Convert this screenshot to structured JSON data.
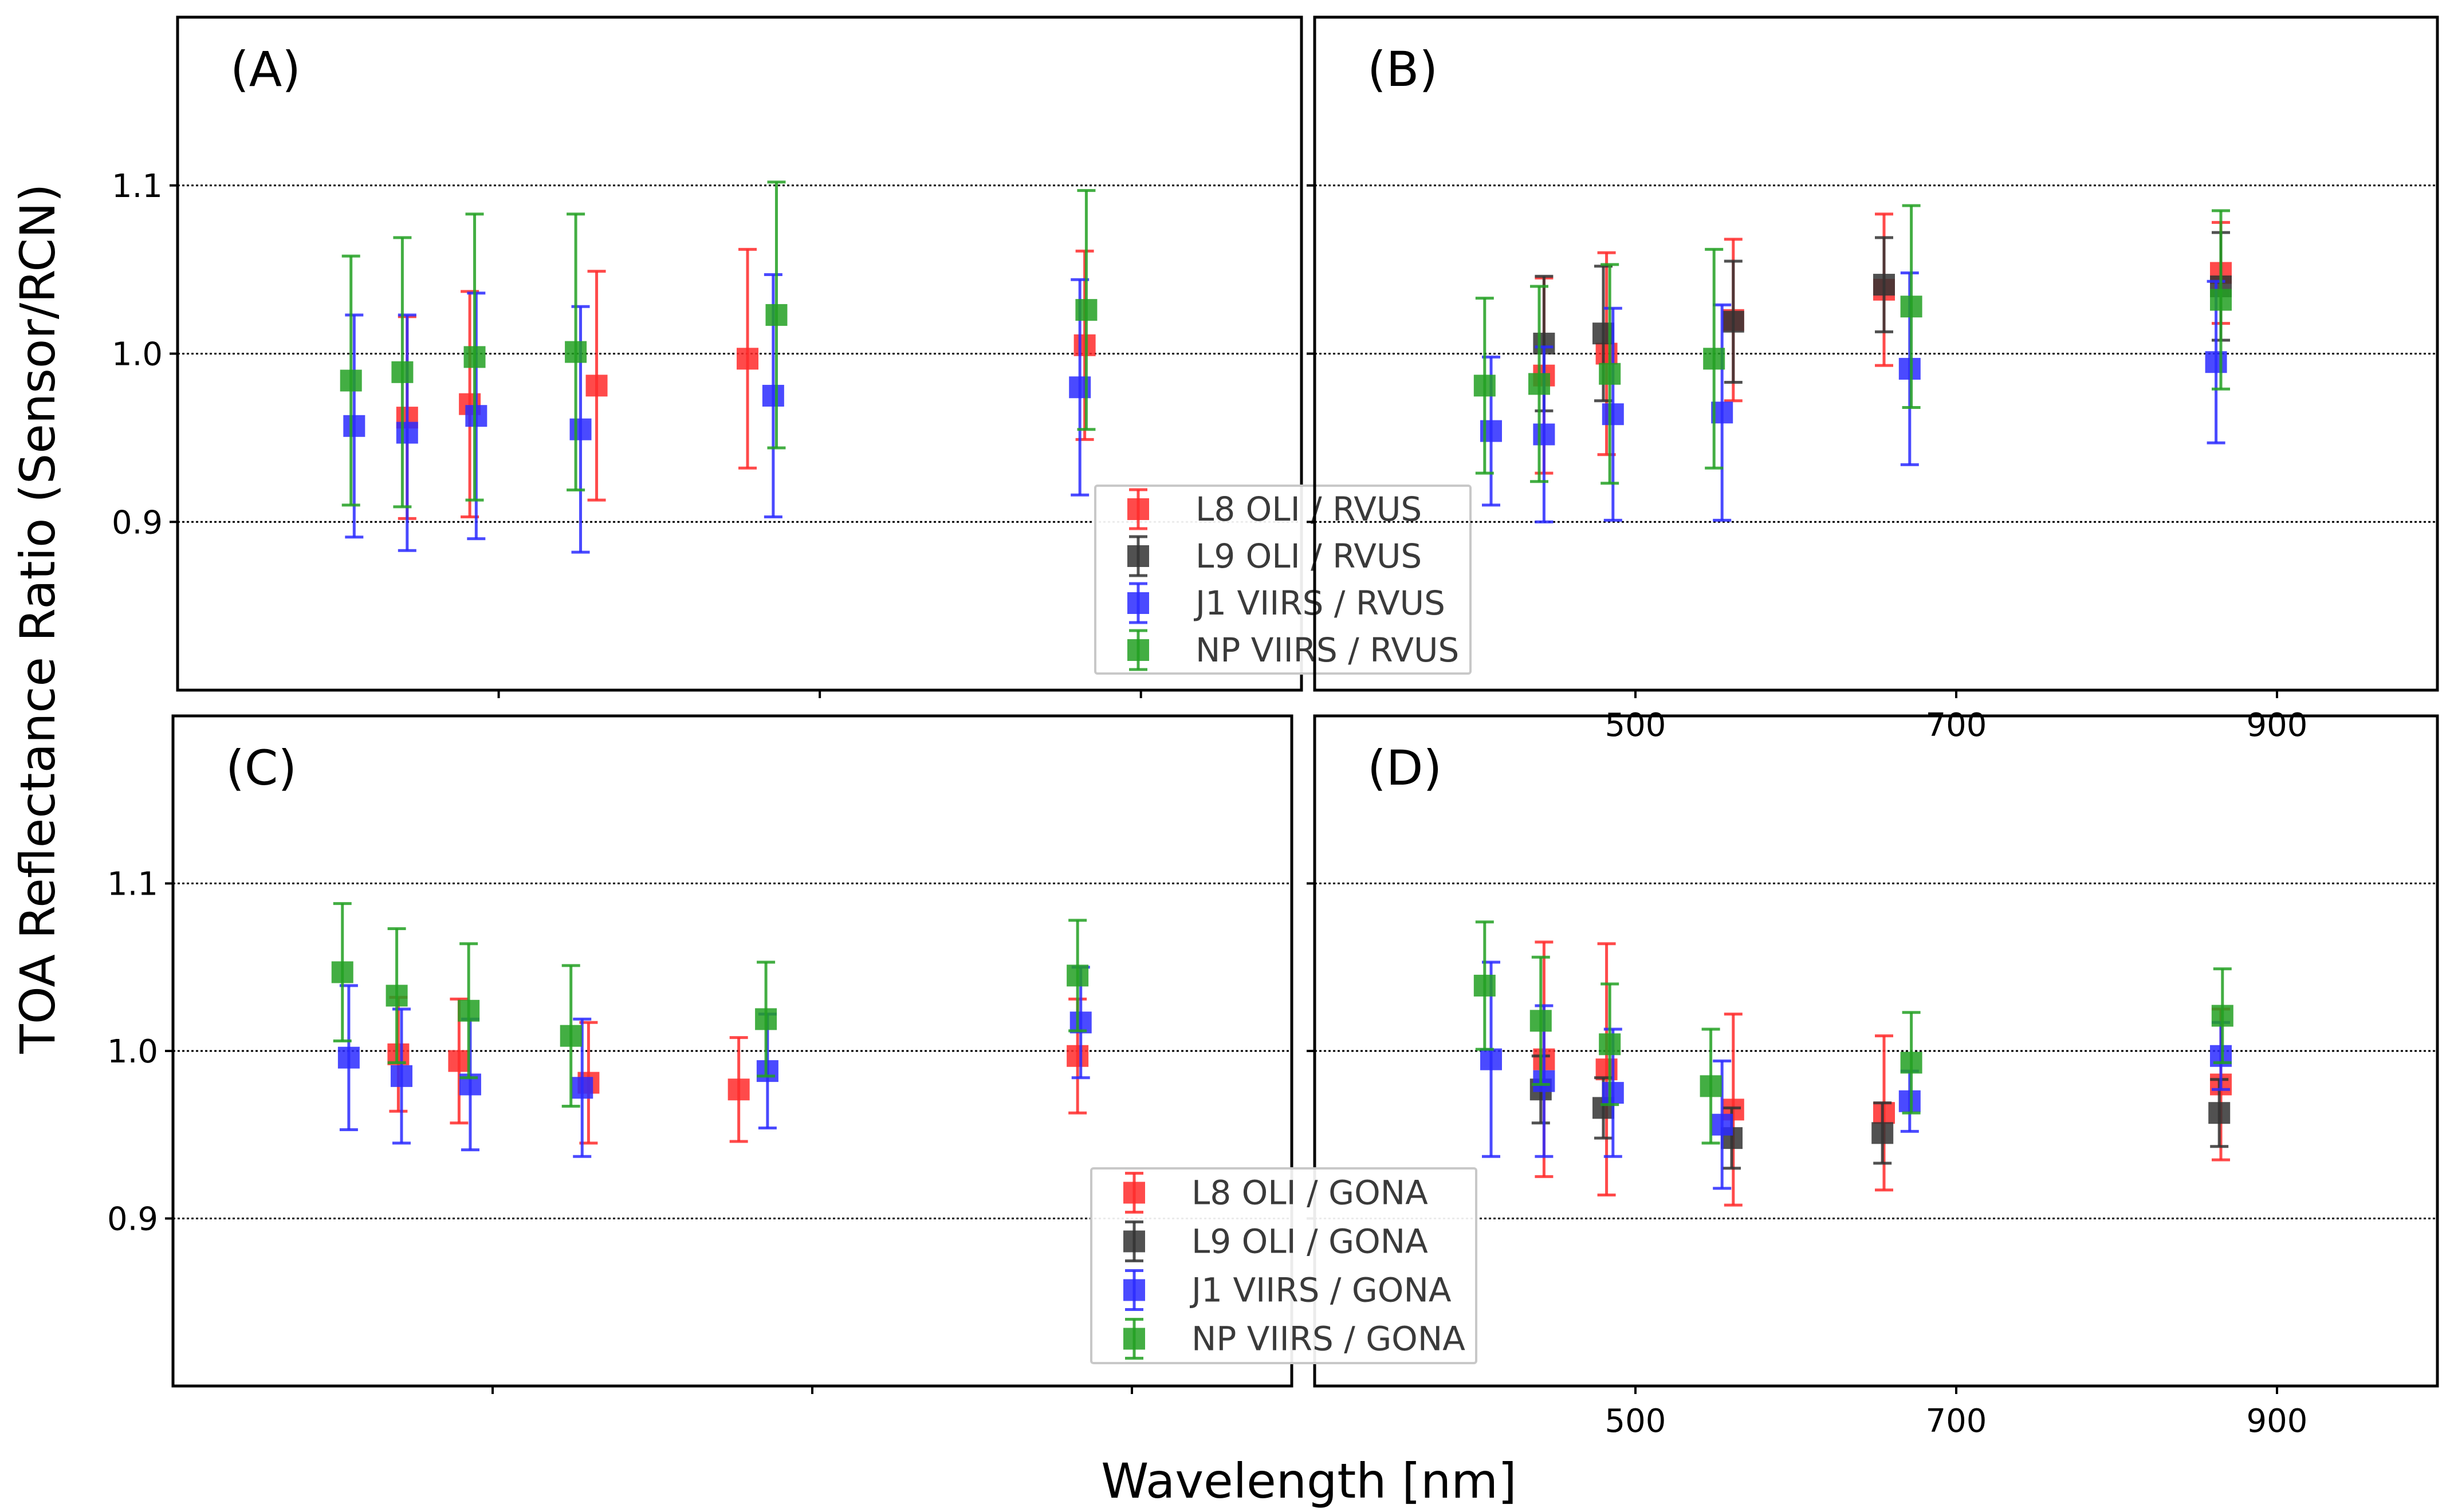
{
  "axis_labels": {
    "x": "Wavelength [nm]",
    "y": "TOA Reflectance Ratio (Sensor/RCN)"
  },
  "colors": {
    "L8": "#ff2a2a",
    "L9": "#333333",
    "J1": "#2a2aff",
    "NP": "#22a022"
  },
  "chart_data": [
    {
      "panel": "(A)",
      "type": "scatter",
      "xlabel": "Wavelength [nm]",
      "ylabel": "TOA Reflectance Ratio (Sensor/RCN)",
      "xlim": [
        300,
        1000
      ],
      "ylim": [
        0.8,
        1.2
      ],
      "xticks": [
        500,
        700,
        900
      ],
      "yticks": [
        0.9,
        1.0,
        1.1
      ],
      "legend": "center",
      "series": [
        {
          "key": "L8",
          "name": "L8 OLI / RVUS",
          "x": [
            443,
            482,
            561,
            655,
            865
          ],
          "y": [
            0.962,
            0.97,
            0.981,
            0.997,
            1.005
          ],
          "err": [
            0.06,
            0.067,
            0.068,
            0.065,
            0.056
          ]
        },
        {
          "key": "L9",
          "name": "L9 OLI / RVUS",
          "x": [],
          "y": [],
          "err": []
        },
        {
          "key": "J1",
          "name": "J1 VIIRS / RVUS",
          "x": [
            410,
            443,
            486,
            551,
            671,
            862
          ],
          "y": [
            0.957,
            0.953,
            0.963,
            0.955,
            0.975,
            0.98
          ],
          "err": [
            0.066,
            0.07,
            0.073,
            0.073,
            0.072,
            0.064
          ]
        },
        {
          "key": "NP",
          "name": "NP VIIRS / RVUS",
          "x": [
            408,
            440,
            485,
            548,
            673,
            866
          ],
          "y": [
            0.984,
            0.989,
            0.998,
            1.001,
            1.023,
            1.026
          ],
          "err": [
            0.074,
            0.08,
            0.085,
            0.082,
            0.079,
            0.071
          ]
        }
      ]
    },
    {
      "panel": "(B)",
      "type": "scatter",
      "xlabel": "Wavelength [nm]",
      "ylabel": "TOA Reflectance Ratio (Sensor/RCN)",
      "xlim": [
        300,
        1000
      ],
      "ylim": [
        0.8,
        1.2
      ],
      "xticks": [
        500,
        700,
        900
      ],
      "yticks": [
        0.9,
        1.0,
        1.1
      ],
      "legend": "none",
      "series": [
        {
          "key": "L8",
          "name": "L8 OLI / RVUS",
          "x": [
            443,
            482,
            561,
            655,
            865
          ],
          "y": [
            0.987,
            1.0,
            1.02,
            1.038,
            1.048
          ],
          "err": [
            0.058,
            0.06,
            0.048,
            0.045,
            0.03
          ]
        },
        {
          "key": "L9",
          "name": "L9 OLI / RVUS",
          "x": [
            443,
            480,
            561,
            655,
            865
          ],
          "y": [
            1.006,
            1.012,
            1.019,
            1.041,
            1.04
          ],
          "err": [
            0.04,
            0.04,
            0.036,
            0.028,
            0.032
          ]
        },
        {
          "key": "J1",
          "name": "J1 VIIRS / RVUS",
          "x": [
            410,
            443,
            486,
            554,
            671,
            862
          ],
          "y": [
            0.954,
            0.952,
            0.964,
            0.965,
            0.991,
            0.995
          ],
          "err": [
            0.044,
            0.052,
            0.063,
            0.064,
            0.057,
            0.048
          ]
        },
        {
          "key": "NP",
          "name": "NP VIIRS / RVUS",
          "x": [
            406,
            440,
            484,
            549,
            672,
            865
          ],
          "y": [
            0.981,
            0.982,
            0.988,
            0.997,
            1.028,
            1.032
          ],
          "err": [
            0.052,
            0.058,
            0.065,
            0.065,
            0.06,
            0.053
          ]
        }
      ]
    },
    {
      "panel": "(C)",
      "type": "scatter",
      "xlabel": "Wavelength [nm]",
      "ylabel": "TOA Reflectance Ratio (Sensor/RCN)",
      "xlim": [
        300,
        1000
      ],
      "ylim": [
        0.8,
        1.2
      ],
      "xticks": [
        500,
        700,
        900
      ],
      "yticks": [
        0.9,
        1.0,
        1.1
      ],
      "legend": "none",
      "series": [
        {
          "key": "L8",
          "name": "L8 OLI / GONA",
          "x": [
            441,
            479,
            560,
            654,
            866
          ],
          "y": [
            0.998,
            0.994,
            0.981,
            0.977,
            0.997
          ],
          "err": [
            0.034,
            0.037,
            0.036,
            0.031,
            0.034
          ]
        },
        {
          "key": "L9",
          "name": "L9 OLI / GONA",
          "x": [],
          "y": [],
          "err": []
        },
        {
          "key": "J1",
          "name": "J1 VIIRS / GONA",
          "x": [
            410,
            443,
            486,
            556,
            672,
            868
          ],
          "y": [
            0.996,
            0.985,
            0.98,
            0.978,
            0.988,
            1.017
          ],
          "err": [
            0.043,
            0.04,
            0.039,
            0.041,
            0.034,
            0.033
          ]
        },
        {
          "key": "NP",
          "name": "NP VIIRS / GONA",
          "x": [
            406,
            440,
            485,
            549,
            671,
            866
          ],
          "y": [
            1.047,
            1.033,
            1.024,
            1.009,
            1.019,
            1.045
          ],
          "err": [
            0.041,
            0.04,
            0.04,
            0.042,
            0.034,
            0.033
          ]
        }
      ]
    },
    {
      "panel": "(D)",
      "type": "scatter",
      "xlabel": "Wavelength [nm]",
      "ylabel": "TOA Reflectance Ratio (Sensor/RCN)",
      "xlim": [
        300,
        1000
      ],
      "ylim": [
        0.8,
        1.2
      ],
      "xticks": [
        500,
        700,
        900
      ],
      "yticks": [
        0.9,
        1.0,
        1.1
      ],
      "legend": "center",
      "series": [
        {
          "key": "L8",
          "name": "L8 OLI / GONA",
          "x": [
            443,
            482,
            561,
            655,
            865
          ],
          "y": [
            0.995,
            0.989,
            0.965,
            0.963,
            0.98
          ],
          "err": [
            0.07,
            0.075,
            0.057,
            0.046,
            0.045
          ]
        },
        {
          "key": "L9",
          "name": "L9 OLI / GONA",
          "x": [
            441,
            480,
            560,
            654,
            864
          ],
          "y": [
            0.977,
            0.966,
            0.948,
            0.951,
            0.963
          ],
          "err": [
            0.02,
            0.018,
            0.018,
            0.018,
            0.02
          ]
        },
        {
          "key": "J1",
          "name": "J1 VIIRS / GONA",
          "x": [
            410,
            443,
            486,
            554,
            671,
            865
          ],
          "y": [
            0.995,
            0.982,
            0.975,
            0.956,
            0.97,
            0.997
          ],
          "err": [
            0.058,
            0.045,
            0.038,
            0.038,
            0.018,
            0.02
          ]
        },
        {
          "key": "NP",
          "name": "NP VIIRS / GONA",
          "x": [
            406,
            441,
            484,
            547,
            672,
            866
          ],
          "y": [
            1.039,
            1.018,
            1.004,
            0.979,
            0.993,
            1.021
          ],
          "err": [
            0.038,
            0.038,
            0.036,
            0.034,
            0.03,
            0.028
          ]
        }
      ]
    }
  ]
}
